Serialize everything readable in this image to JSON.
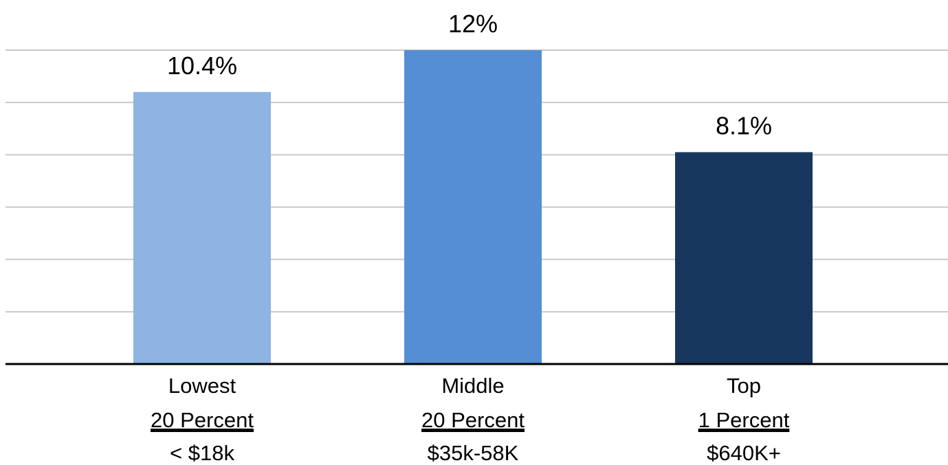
{
  "chart_data": {
    "type": "bar",
    "title": "",
    "xlabel": "",
    "ylabel": "",
    "ylim": [
      0,
      12
    ],
    "grid": true,
    "gridlines": [
      0,
      2,
      4,
      6,
      8,
      10,
      12
    ],
    "categories": [
      {
        "line1": "Lowest",
        "line2": "20 Percent",
        "line3": "< $18k"
      },
      {
        "line1": "Middle",
        "line2": "20 Percent",
        "line3": "$35k-58K"
      },
      {
        "line1": "Top",
        "line2": "1 Percent",
        "line3": "$640K+"
      }
    ],
    "values": [
      10.4,
      12,
      8.1
    ],
    "data_labels": [
      "10.4%",
      "12%",
      "8.1%"
    ],
    "colors": [
      "#8eb4e3",
      "#558ed5",
      "#17375e"
    ]
  }
}
